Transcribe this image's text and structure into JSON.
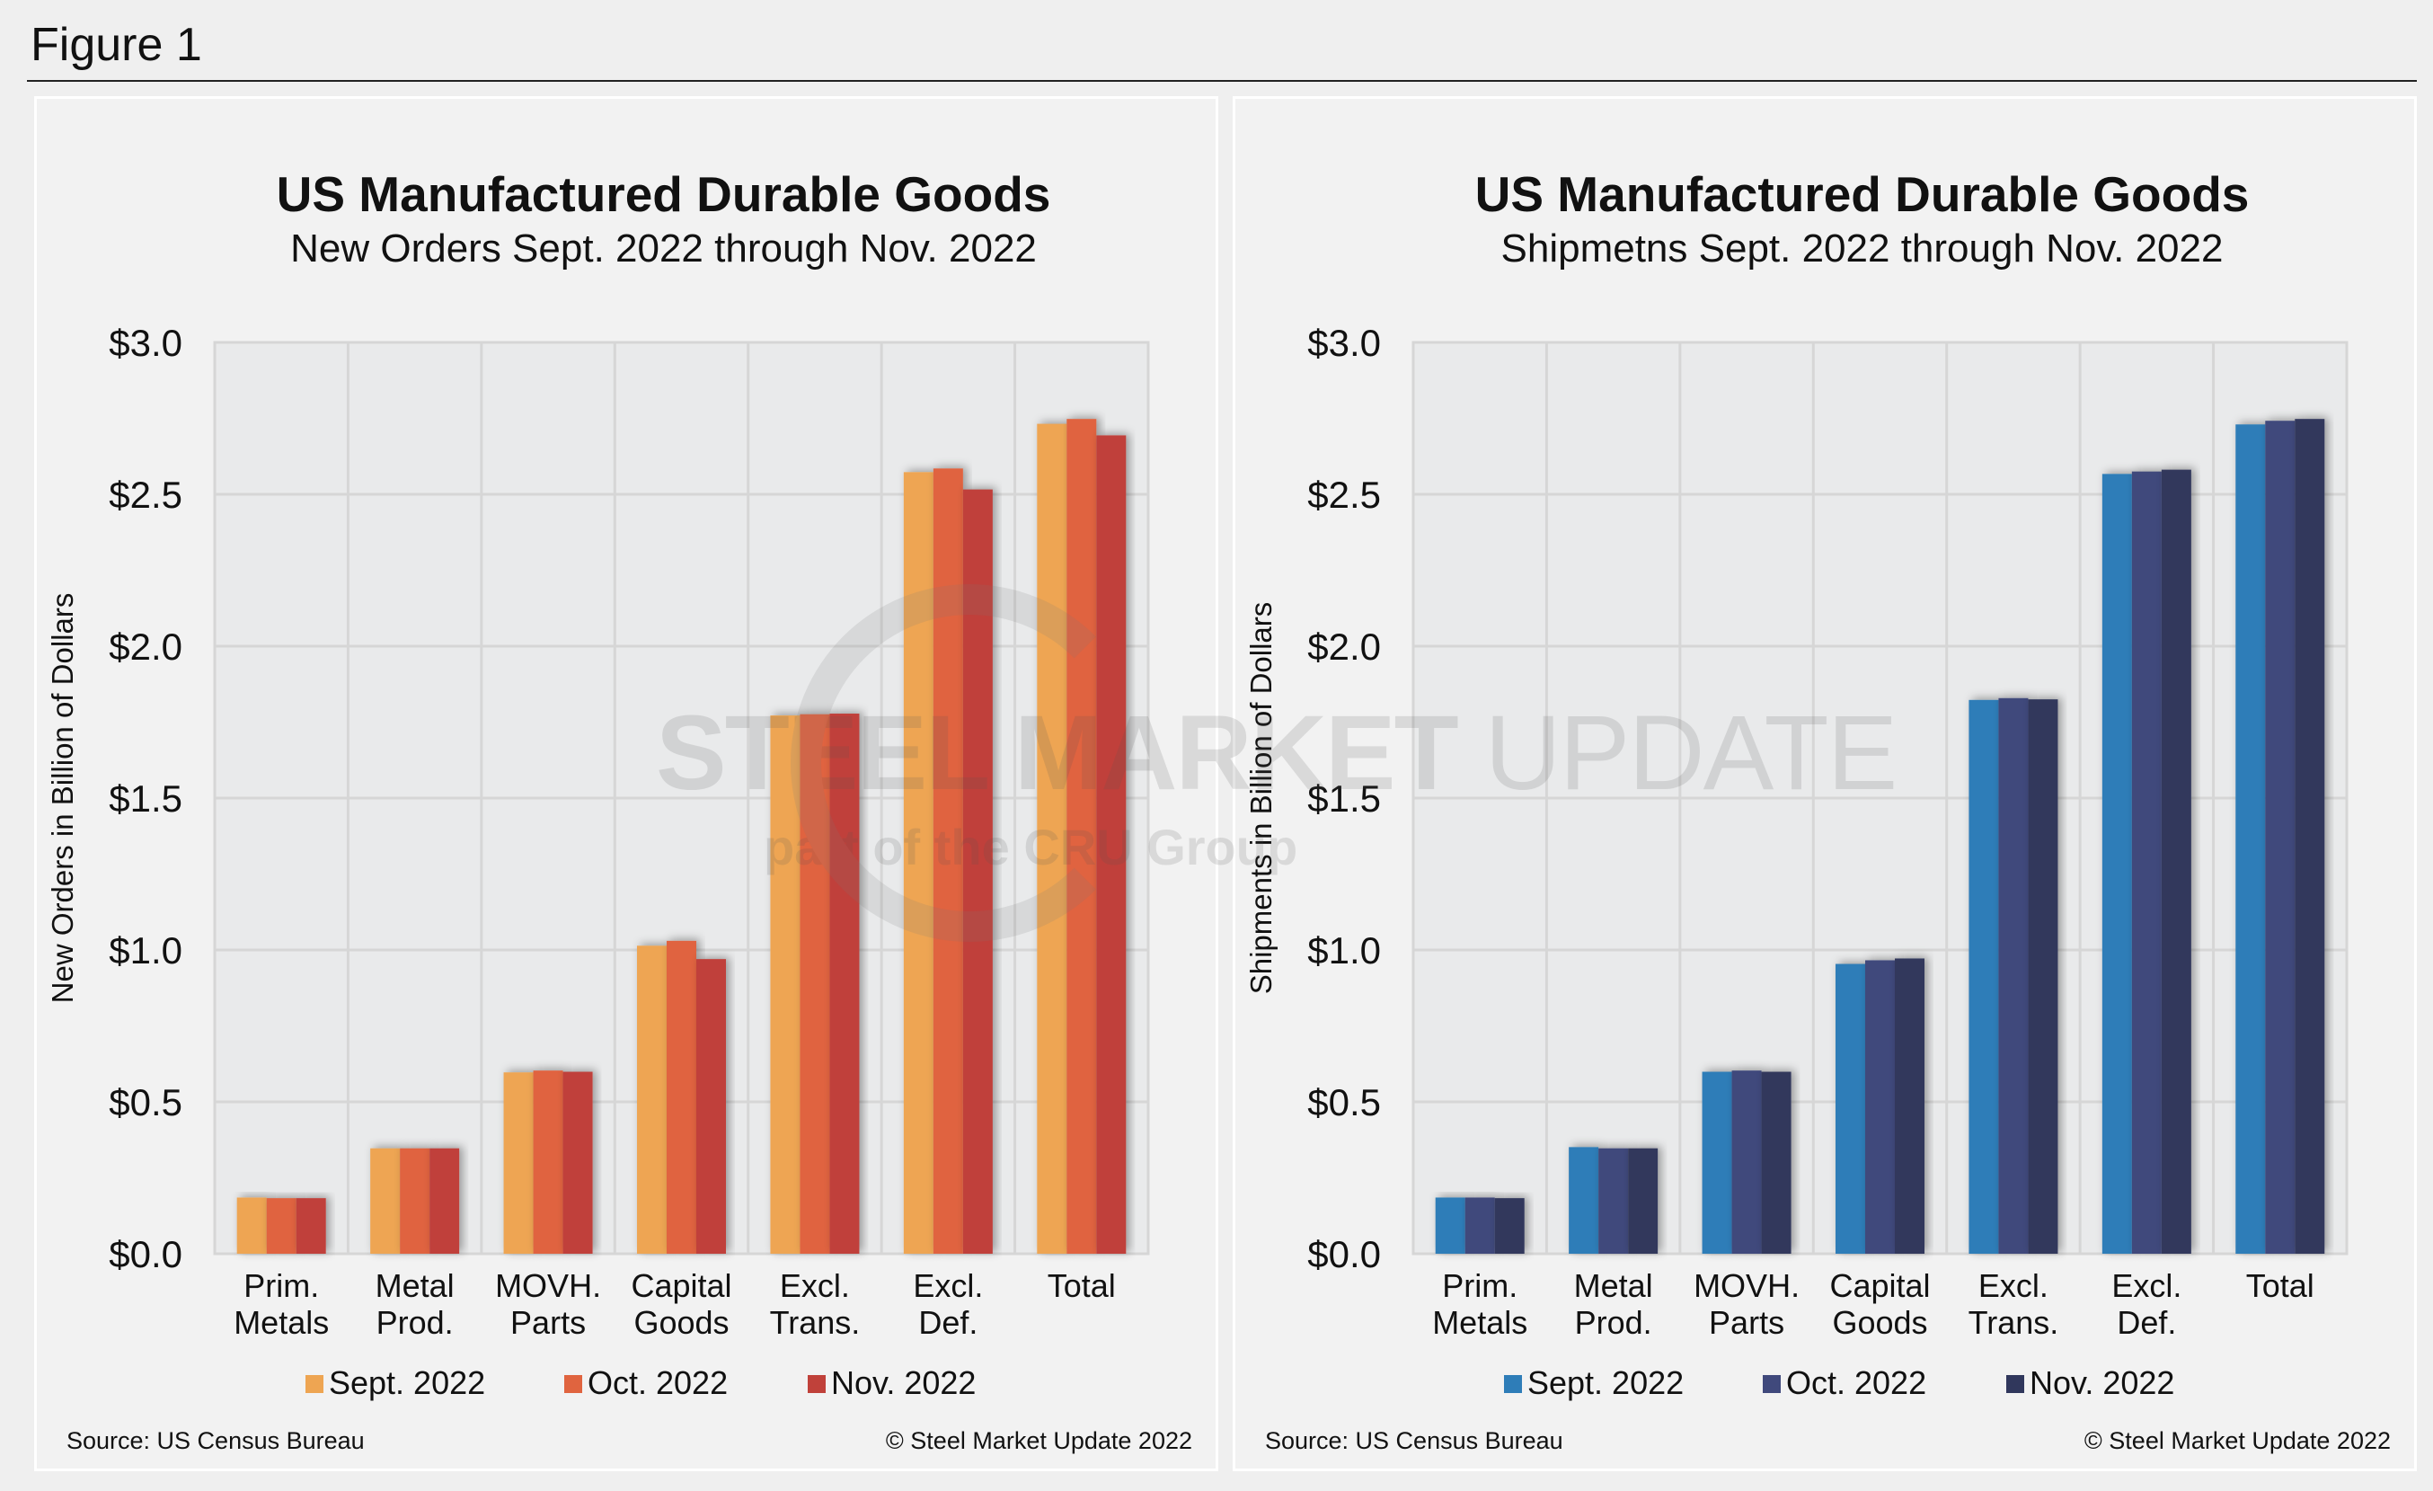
{
  "figure_title": "Figure 1",
  "watermark": {
    "main_bold": "STEEL MARKET",
    "main_light": " UPDATE",
    "sub": "part of the CRU Group"
  },
  "chart_data": [
    {
      "type": "bar",
      "title": "US Manufactured Durable Goods",
      "subtitle": "New Orders Sept. 2022 through Nov. 2022",
      "ylabel": "New Orders in Billion of Dollars",
      "xlabel": "",
      "ylim": [
        0,
        3.0
      ],
      "yticks": [
        "$0.0",
        "$0.5",
        "$1.0",
        "$1.5",
        "$2.0",
        "$2.5",
        "$3.0"
      ],
      "grid": true,
      "legend_position": "bottom",
      "categories": [
        [
          "Prim.",
          "Metals"
        ],
        [
          "Metal",
          "Prod."
        ],
        [
          "MOVH.",
          "Parts"
        ],
        [
          "Capital",
          "Goods"
        ],
        [
          "Excl.",
          "Trans."
        ],
        [
          "Excl.",
          "Def."
        ],
        [
          "Total",
          ""
        ]
      ],
      "series": [
        {
          "name": "Sept. 2022",
          "color": "#eea552",
          "values": [
            0.185,
            0.347,
            0.597,
            1.014,
            1.772,
            2.573,
            2.732
          ]
        },
        {
          "name": "Oct. 2022",
          "color": "#e0643f",
          "values": [
            0.183,
            0.347,
            0.603,
            1.03,
            1.776,
            2.585,
            2.748
          ]
        },
        {
          "name": "Nov. 2022",
          "color": "#c0413a",
          "values": [
            0.183,
            0.347,
            0.599,
            0.97,
            1.778,
            2.516,
            2.694
          ]
        }
      ],
      "source": "Source: US Census Bureau",
      "copyright": "© Steel Market Update 2022"
    },
    {
      "type": "bar",
      "title": "US Manufactured Durable Goods",
      "subtitle": "Shipmetns Sept. 2022 through Nov. 2022",
      "ylabel": "Shipments in Billion of Dollars",
      "xlabel": "",
      "ylim": [
        0,
        3.0
      ],
      "yticks": [
        "$0.0",
        "$0.5",
        "$1.0",
        "$1.5",
        "$2.0",
        "$2.5",
        "$3.0"
      ],
      "grid": true,
      "legend_position": "bottom",
      "categories": [
        [
          "Prim.",
          "Metals"
        ],
        [
          "Metal",
          "Prod."
        ],
        [
          "MOVH.",
          "Parts"
        ],
        [
          "Capital",
          "Goods"
        ],
        [
          "Excl.",
          "Trans."
        ],
        [
          "Excl.",
          "Def."
        ],
        [
          "Total",
          ""
        ]
      ],
      "series": [
        {
          "name": "Sept. 2022",
          "color": "#2e7db8",
          "values": [
            0.185,
            0.351,
            0.599,
            0.954,
            1.823,
            2.567,
            2.73
          ]
        },
        {
          "name": "Oct. 2022",
          "color": "#40497c",
          "values": [
            0.185,
            0.347,
            0.603,
            0.966,
            1.829,
            2.575,
            2.742
          ]
        },
        {
          "name": "Nov. 2022",
          "color": "#30375c",
          "values": [
            0.183,
            0.347,
            0.599,
            0.972,
            1.825,
            2.581,
            2.748
          ]
        }
      ],
      "source": "Source: US Census Bureau",
      "copyright": "© Steel Market Update 2022"
    }
  ]
}
